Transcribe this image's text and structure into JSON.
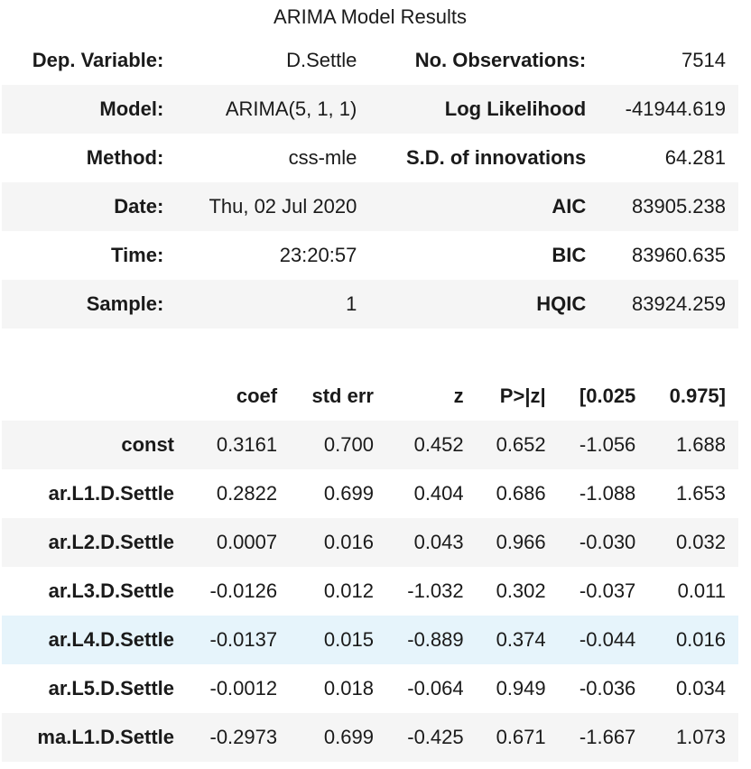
{
  "caption": "ARIMA Model Results",
  "info_rows": [
    {
      "label1": "Dep. Variable:",
      "value1": "D.Settle",
      "label2": "No. Observations:",
      "value2": "7514"
    },
    {
      "label1": "Model:",
      "value1": "ARIMA(5, 1, 1)",
      "label2": "Log Likelihood",
      "value2": "-41944.619"
    },
    {
      "label1": "Method:",
      "value1": "css-mle",
      "label2": "S.D. of innovations",
      "value2": "64.281"
    },
    {
      "label1": "Date:",
      "value1": "Thu, 02 Jul 2020",
      "label2": "AIC",
      "value2": "83905.238"
    },
    {
      "label1": "Time:",
      "value1": "23:20:57",
      "label2": "BIC",
      "value2": "83960.635"
    },
    {
      "label1": "Sample:",
      "value1": "1",
      "label2": "HQIC",
      "value2": "83924.259"
    }
  ],
  "coef_headers": [
    "",
    "coef",
    "std err",
    "z",
    "P>|z|",
    "[0.025",
    "0.975]"
  ],
  "coef_rows": [
    [
      "const",
      "0.3161",
      "0.700",
      "0.452",
      "0.652",
      "-1.056",
      "1.688"
    ],
    [
      "ar.L1.D.Settle",
      "0.2822",
      "0.699",
      "0.404",
      "0.686",
      "-1.088",
      "1.653"
    ],
    [
      "ar.L2.D.Settle",
      "0.0007",
      "0.016",
      "0.043",
      "0.966",
      "-0.030",
      "0.032"
    ],
    [
      "ar.L3.D.Settle",
      "-0.0126",
      "0.012",
      "-1.032",
      "0.302",
      "-0.037",
      "0.011"
    ],
    [
      "ar.L4.D.Settle",
      "-0.0137",
      "0.015",
      "-0.889",
      "0.374",
      "-0.044",
      "0.016"
    ],
    [
      "ar.L5.D.Settle",
      "-0.0012",
      "0.018",
      "-0.064",
      "0.949",
      "-0.036",
      "0.034"
    ],
    [
      "ma.L1.D.Settle",
      "-0.2973",
      "0.699",
      "-0.425",
      "0.671",
      "-1.667",
      "1.073"
    ]
  ],
  "colors": {
    "stripe": "#f5f5f5",
    "hover_row": "#e6f4fb"
  }
}
